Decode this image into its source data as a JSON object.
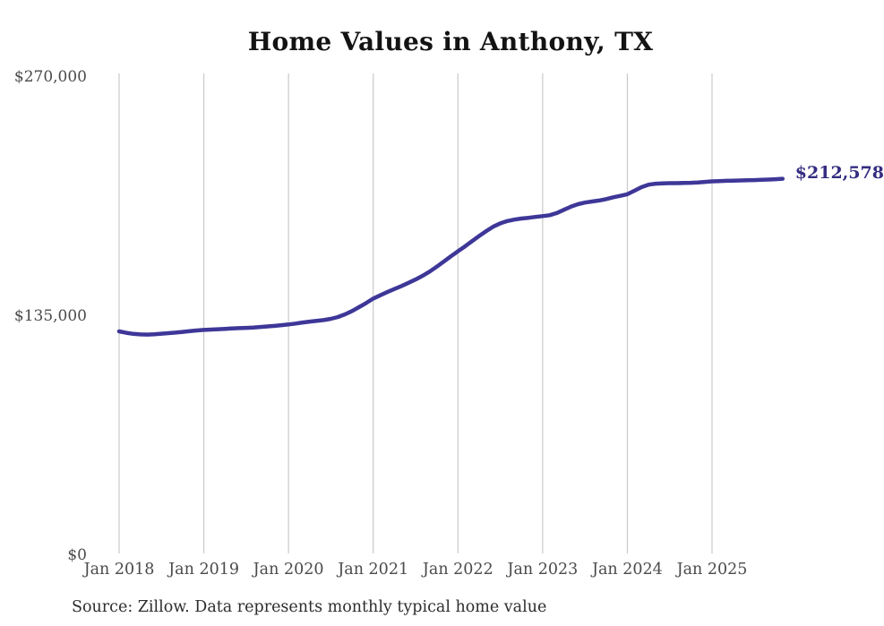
{
  "page": {
    "background": "#ffffff"
  },
  "chart": {
    "title": "Home Values in Anthony, TX",
    "source_note": "Source: Zillow. Data represents monthly typical home value",
    "end_value_label": "$212,578",
    "colors": {
      "line": "#3e3798",
      "end_label": "#342d80",
      "gridline": "#cacaca",
      "axis_text": "#4a4a4a",
      "title_text": "#131313",
      "source_text": "#2d2d2d"
    },
    "y_axis": {
      "ticks": [
        {
          "label": "$270,000",
          "value": 270000
        },
        {
          "label": "$135,000",
          "value": 135000
        },
        {
          "label": "$0",
          "value": 0
        }
      ]
    },
    "x_axis": {
      "ticks": [
        "Jan 2018",
        "Jan 2019",
        "Jan 2020",
        "Jan 2021",
        "Jan 2022",
        "Jan 2023",
        "Jan 2024",
        "Jan 2025"
      ]
    }
  },
  "chart_data": {
    "type": "line",
    "title": "Home Values in Anthony, TX",
    "series_name": "Monthly typical home value (Zillow)",
    "x_start": "2018-01",
    "x_end": "2025-11",
    "x_frequency": "monthly",
    "x_tick_labels": [
      "Jan 2018",
      "Jan 2019",
      "Jan 2020",
      "Jan 2021",
      "Jan 2022",
      "Jan 2023",
      "Jan 2024",
      "Jan 2025"
    ],
    "ylim": [
      0,
      270000
    ],
    "y_tick_values": [
      0,
      135000,
      270000
    ],
    "grid": "vertical-only",
    "legend": "none",
    "last_value": 212578,
    "last_value_label": "$212,578",
    "values": [
      126400,
      125600,
      125000,
      124700,
      124600,
      124800,
      125100,
      125400,
      125700,
      126100,
      126500,
      126900,
      127200,
      127400,
      127600,
      127800,
      128000,
      128200,
      128400,
      128600,
      128900,
      129200,
      129500,
      129900,
      130300,
      130800,
      131400,
      131900,
      132300,
      132800,
      133500,
      134500,
      136000,
      137900,
      140100,
      142400,
      144900,
      146800,
      148600,
      150300,
      152000,
      153800,
      155700,
      157800,
      160200,
      162900,
      165800,
      168800,
      171600,
      174400,
      177300,
      180200,
      183000,
      185500,
      187400,
      188700,
      189500,
      190100,
      190500,
      191000,
      191500,
      192000,
      193200,
      195000,
      196800,
      198200,
      199100,
      199700,
      200300,
      201100,
      202100,
      202900,
      203800,
      205800,
      207800,
      209200,
      209800,
      210000,
      210100,
      210100,
      210200,
      210300,
      210500,
      210800,
      211100,
      211250,
      211400,
      211500,
      211600,
      211700,
      211800,
      211950,
      212100,
      212300,
      212578
    ]
  }
}
